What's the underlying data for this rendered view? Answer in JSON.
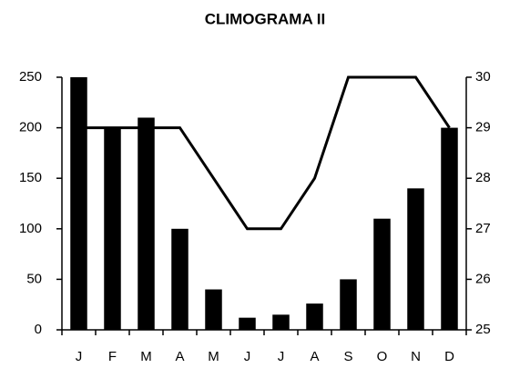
{
  "chart_data": {
    "type": "bar",
    "title": "CLIMOGRAMA II",
    "categories": [
      "J",
      "F",
      "M",
      "A",
      "M",
      "J",
      "J",
      "A",
      "S",
      "O",
      "N",
      "D"
    ],
    "series": [
      {
        "type": "bar",
        "color": "#000000",
        "values": [
          250,
          200,
          210,
          100,
          40,
          12,
          15,
          26,
          50,
          110,
          140,
          200
        ]
      },
      {
        "type": "line",
        "axis": "y2",
        "color": "#000000",
        "values": [
          29,
          29,
          29,
          29,
          28,
          27,
          27,
          28,
          30,
          30,
          30,
          29
        ]
      }
    ],
    "ylim": [
      0,
      250
    ],
    "yticks": [
      0,
      50,
      100,
      150,
      200,
      250
    ],
    "y2lim": [
      25,
      30
    ],
    "y2ticks": [
      25,
      26,
      27,
      28,
      29,
      30
    ]
  }
}
